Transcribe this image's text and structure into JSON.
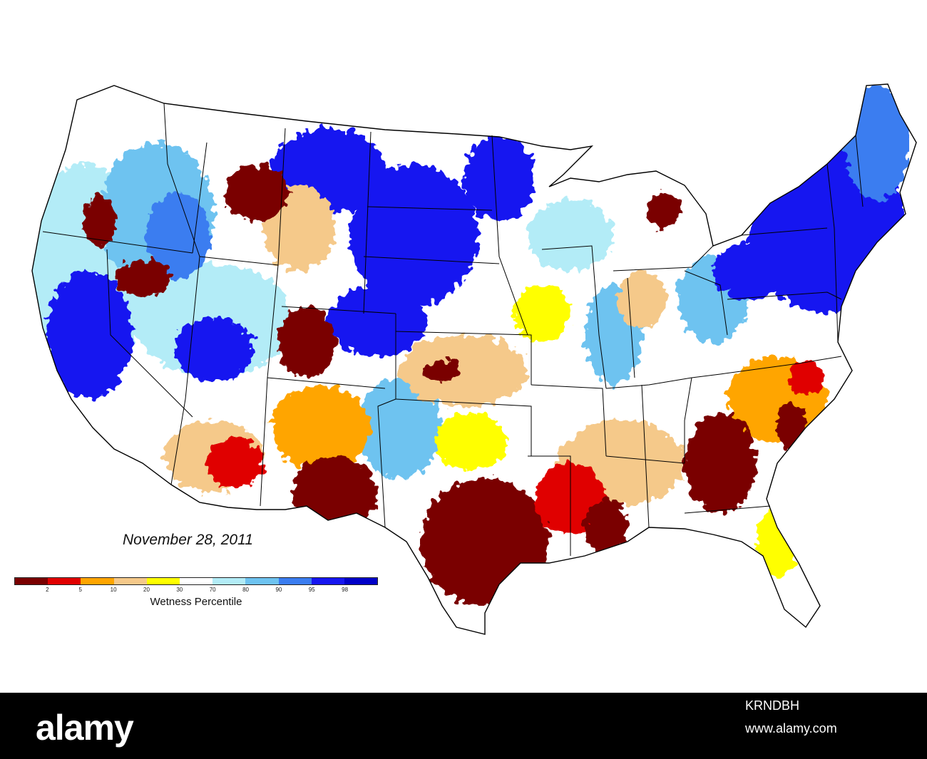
{
  "map": {
    "date": "November 28, 2011",
    "legend_title": "Wetness Percentile",
    "legend_ticks": [
      "2",
      "5",
      "10",
      "20",
      "30",
      "70",
      "80",
      "90",
      "95",
      "98"
    ],
    "legend_colors": [
      "#7a0000",
      "#e00000",
      "#ffa500",
      "#f5c98a",
      "#ffff00",
      "#ffffff",
      "#b3ecf7",
      "#6ec3f0",
      "#3b7df0",
      "#1616f0",
      "#0000c8"
    ]
  },
  "footer": {
    "brand": "alamy",
    "image_id": "KRNDBH",
    "url": "www.alamy.com"
  },
  "chart_data": {
    "type": "heatmap",
    "title": "November 28, 2011",
    "colorbar_label": "Wetness Percentile",
    "colorbar_ticks": [
      2,
      5,
      10,
      20,
      30,
      70,
      80,
      90,
      95,
      98
    ],
    "colorbar_colors": [
      "#7a0000",
      "#e00000",
      "#ffa500",
      "#f5c98a",
      "#ffff00",
      "#ffffff",
      "#b3ecf7",
      "#6ec3f0",
      "#3b7df0",
      "#1616f0",
      "#0000c8"
    ]
  }
}
